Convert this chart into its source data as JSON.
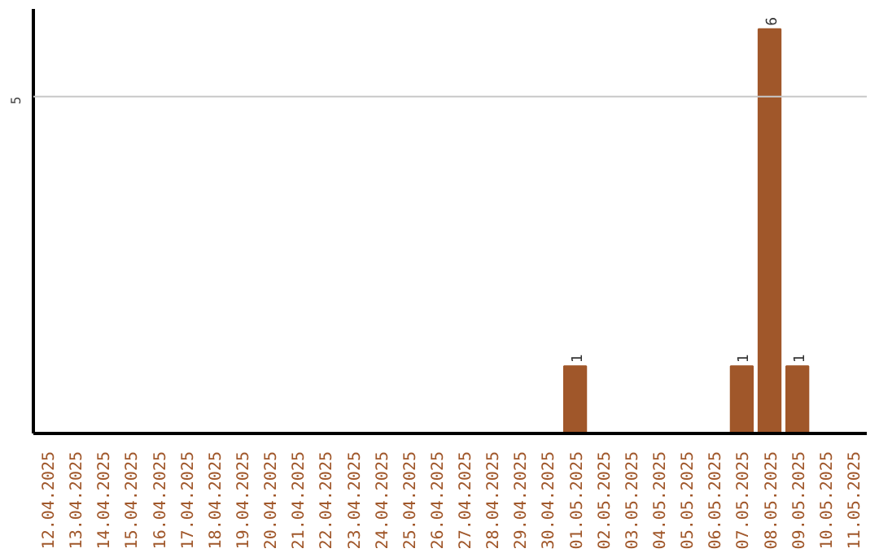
{
  "chart_data": {
    "type": "bar",
    "categories": [
      "12.04.2025",
      "13.04.2025",
      "14.04.2025",
      "15.04.2025",
      "16.04.2025",
      "17.04.2025",
      "18.04.2025",
      "19.04.2025",
      "20.04.2025",
      "21.04.2025",
      "22.04.2025",
      "23.04.2025",
      "24.04.2025",
      "25.04.2025",
      "26.04.2025",
      "27.04.2025",
      "28.04.2025",
      "29.04.2025",
      "30.04.2025",
      "01.05.2025",
      "02.05.2025",
      "03.05.2025",
      "04.05.2025",
      "05.05.2025",
      "06.05.2025",
      "07.05.2025",
      "08.05.2025",
      "09.05.2025",
      "10.05.2025",
      "11.05.2025"
    ],
    "values": [
      null,
      null,
      null,
      null,
      null,
      null,
      null,
      null,
      null,
      null,
      null,
      null,
      null,
      null,
      null,
      null,
      null,
      null,
      null,
      1,
      null,
      null,
      null,
      null,
      null,
      1,
      6,
      1,
      null,
      null
    ],
    "data_labels": true,
    "ylim": [
      0,
      6.3
    ],
    "color": "#a0572a",
    "ref_lines": [
      {
        "axis": "y",
        "value": 5,
        "label": "5",
        "color": "#c8c8c8"
      }
    ]
  }
}
